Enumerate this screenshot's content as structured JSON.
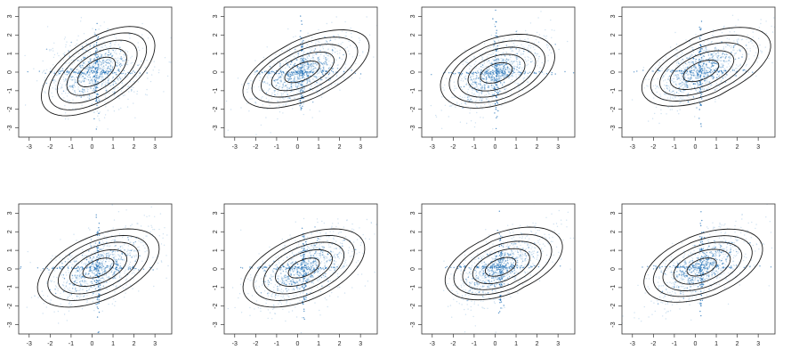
{
  "figure": {
    "rows": 2,
    "cols": 4,
    "point_color": "#1f6fb5",
    "light_point_color": "#a9cbe6",
    "contour_color": "#1a1a1a",
    "frame_color": "#333333"
  },
  "chart_data": [
    {
      "type": "scatter",
      "panel": 1,
      "xlim": [
        -3.5,
        3.8
      ],
      "ylim": [
        -3.5,
        3.5
      ],
      "x_ticks": [
        -3,
        -2,
        -1,
        0,
        1,
        2,
        3
      ],
      "y_ticks": [
        -3,
        -2,
        -1,
        0,
        1,
        2,
        3
      ],
      "x_tick_labels": [
        "-3",
        "-2",
        "-1",
        "0",
        "1",
        "2",
        "3"
      ],
      "y_tick_labels": [
        "-3",
        "-2",
        "-1",
        "0",
        "1",
        "2",
        "3"
      ],
      "grid": false,
      "density": {
        "center": [
          0.2,
          0.0
        ],
        "sx": 1.25,
        "sy": 1.05,
        "rho": 0.2,
        "skew_x": 0.05,
        "skew_y": 0.03
      },
      "contour_levels": [
        0.85,
        1.35,
        1.8,
        2.2,
        2.55
      ]
    },
    {
      "type": "scatter",
      "panel": 2,
      "xlim": [
        -3.5,
        3.8
      ],
      "ylim": [
        -3.5,
        3.5
      ],
      "x_ticks": [
        -3,
        -2,
        -1,
        0,
        1,
        2,
        3
      ],
      "y_ticks": [
        -3,
        -2,
        -1,
        0,
        1,
        2,
        3
      ],
      "x_tick_labels": [
        "-3",
        "-2",
        "-1",
        "0",
        "1",
        "2",
        "3"
      ],
      "y_tick_labels": [
        "-3",
        "-2",
        "-1",
        "0",
        "1",
        "2",
        "3"
      ],
      "grid": false,
      "density": {
        "center": [
          0.2,
          0.0
        ],
        "sx": 1.3,
        "sy": 1.0,
        "rho": 0.55,
        "skew_x": 0.12,
        "skew_y": 0.1
      },
      "contour_levels": [
        0.7,
        1.25,
        1.7,
        2.1,
        2.5
      ]
    },
    {
      "type": "scatter",
      "panel": 3,
      "xlim": [
        -3.5,
        3.8
      ],
      "ylim": [
        -3.5,
        3.5
      ],
      "x_ticks": [
        -3,
        -2,
        -1,
        0,
        1,
        2,
        3
      ],
      "y_ticks": [
        -3,
        -2,
        -1,
        0,
        1,
        2,
        3
      ],
      "x_tick_labels": [
        "-3",
        "-2",
        "-1",
        "0",
        "1",
        "2",
        "3"
      ],
      "y_tick_labels": [
        "-3",
        "-2",
        "-1",
        "0",
        "1",
        "2",
        "3"
      ],
      "grid": false,
      "density": {
        "center": [
          0.05,
          -0.05
        ],
        "sx": 1.15,
        "sy": 1.1,
        "rho": 0.65,
        "skew_x": 0.04,
        "skew_y": 0.06
      },
      "contour_levels": [
        0.7,
        1.25,
        1.7,
        2.1,
        2.5
      ]
    },
    {
      "type": "scatter",
      "panel": 4,
      "xlim": [
        -3.5,
        3.8
      ],
      "ylim": [
        -3.5,
        3.5
      ],
      "x_ticks": [
        -3,
        -2,
        -1,
        0,
        1,
        2,
        3
      ],
      "y_ticks": [
        -3,
        -2,
        -1,
        0,
        1,
        2,
        3
      ],
      "x_tick_labels": [
        "-3",
        "-2",
        "-1",
        "0",
        "1",
        "2",
        "3"
      ],
      "y_tick_labels": [
        "-3",
        "-2",
        "-1",
        "0",
        "1",
        "2",
        "3"
      ],
      "grid": false,
      "density": {
        "center": [
          0.25,
          0.05
        ],
        "sx": 1.3,
        "sy": 1.05,
        "rho": 0.6,
        "skew_x": 0.16,
        "skew_y": 0.14
      },
      "contour_levels": [
        0.7,
        1.25,
        1.7,
        2.1,
        2.5
      ]
    },
    {
      "type": "scatter",
      "panel": 5,
      "xlim": [
        -3.5,
        3.8
      ],
      "ylim": [
        -3.5,
        3.5
      ],
      "x_ticks": [
        -3,
        -2,
        -1,
        0,
        1,
        2,
        3
      ],
      "y_ticks": [
        -3,
        -2,
        -1,
        0,
        1,
        2,
        3
      ],
      "x_tick_labels": [
        "-3",
        "-2",
        "-1",
        "0",
        "1",
        "2",
        "3"
      ],
      "y_tick_labels": [
        "-3",
        "-2",
        "-1",
        "0",
        "1",
        "2",
        "3"
      ],
      "grid": false,
      "density": {
        "center": [
          0.3,
          0.05
        ],
        "sx": 1.35,
        "sy": 1.15,
        "rho": 0.55,
        "skew_x": 0.0,
        "skew_y": 0.0
      },
      "contour_levels": [
        0.6,
        1.1,
        1.55,
        1.95,
        2.35
      ]
    },
    {
      "type": "scatter",
      "panel": 6,
      "xlim": [
        -3.5,
        3.8
      ],
      "ylim": [
        -3.5,
        3.5
      ],
      "x_ticks": [
        -3,
        -2,
        -1,
        0,
        1,
        2,
        3
      ],
      "y_ticks": [
        -3,
        -2,
        -1,
        0,
        1,
        2,
        3
      ],
      "x_tick_labels": [
        "-3",
        "-2",
        "-1",
        "0",
        "1",
        "2",
        "3"
      ],
      "y_tick_labels": [
        "-3",
        "-2",
        "-1",
        "0",
        "1",
        "2",
        "3"
      ],
      "grid": false,
      "density": {
        "center": [
          0.3,
          0.05
        ],
        "sx": 1.35,
        "sy": 1.15,
        "rho": 0.55,
        "skew_x": 0.0,
        "skew_y": 0.0
      },
      "contour_levels": [
        0.6,
        1.1,
        1.55,
        1.95,
        2.35
      ]
    },
    {
      "type": "scatter",
      "panel": 7,
      "xlim": [
        -3.5,
        3.8
      ],
      "ylim": [
        -3.5,
        3.5
      ],
      "x_ticks": [
        -3,
        -2,
        -1,
        0,
        1,
        2,
        3
      ],
      "y_ticks": [
        -3,
        -2,
        -1,
        0,
        1,
        2,
        3
      ],
      "x_tick_labels": [
        "-3",
        "-2",
        "-1",
        "0",
        "1",
        "2",
        "3"
      ],
      "y_tick_labels": [
        "-3",
        "-2",
        "-1",
        "0",
        "1",
        "2",
        "3"
      ],
      "grid": false,
      "density": {
        "center": [
          0.25,
          0.1
        ],
        "sx": 1.2,
        "sy": 1.05,
        "rho": 0.65,
        "skew_x": 0.1,
        "skew_y": 0.12
      },
      "contour_levels": [
        0.65,
        1.2,
        1.65,
        2.05,
        2.45
      ]
    },
    {
      "type": "scatter",
      "panel": 8,
      "xlim": [
        -3.5,
        3.8
      ],
      "ylim": [
        -3.5,
        3.5
      ],
      "x_ticks": [
        -3,
        -2,
        -1,
        0,
        1,
        2,
        3
      ],
      "y_ticks": [
        -3,
        -2,
        -1,
        0,
        1,
        2,
        3
      ],
      "x_tick_labels": [
        "-3",
        "-2",
        "-1",
        "0",
        "1",
        "2",
        "3"
      ],
      "y_tick_labels": [
        "-3",
        "-2",
        "-1",
        "0",
        "1",
        "2",
        "3"
      ],
      "grid": false,
      "density": {
        "center": [
          0.3,
          0.1
        ],
        "sx": 1.25,
        "sy": 1.1,
        "rho": 0.65,
        "skew_x": 0.05,
        "skew_y": 0.05
      },
      "contour_levels": [
        0.6,
        1.15,
        1.6,
        2.0,
        2.4
      ]
    }
  ]
}
